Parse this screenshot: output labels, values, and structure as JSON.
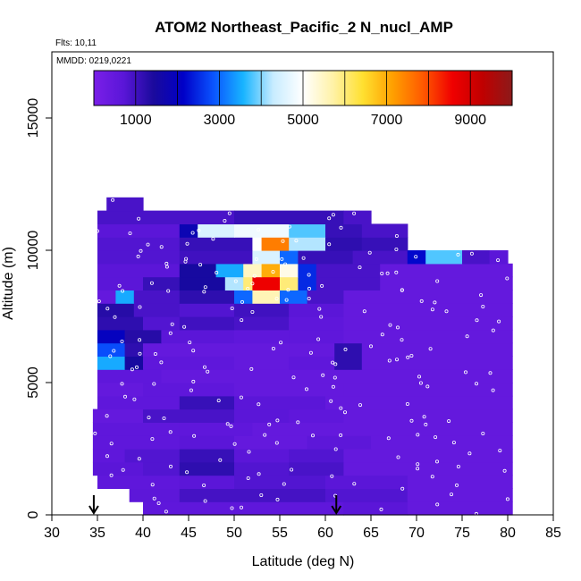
{
  "chart_data": {
    "type": "heatmap",
    "title": "ATOM2 Northeast_Pacific_2 N_nucl_AMP",
    "flights_label": "Flts: 10,11",
    "dates_label": "MMDD: 0219,0221",
    "xlabel": "Latitude (deg N)",
    "ylabel": "Altitude (m)",
    "xlim": [
      30,
      85
    ],
    "ylim": [
      0,
      17500
    ],
    "xticks": [
      30,
      35,
      40,
      45,
      50,
      55,
      60,
      65,
      70,
      75,
      80,
      85
    ],
    "yticks": [
      0,
      5000,
      10000,
      15000
    ],
    "colorbar": {
      "min": 0,
      "max": 10000,
      "ticks": [
        1000,
        3000,
        5000,
        7000,
        9000
      ],
      "stops": [
        "#7a1fe8",
        "#5a16d8",
        "#1a0a9c",
        "#0000c8",
        "#0a54ff",
        "#18b4ff",
        "#c8ecff",
        "#ffffff",
        "#fff2a8",
        "#ffe030",
        "#ffa000",
        "#ff5a00",
        "#f00000",
        "#c00000",
        "#8c1a1a"
      ]
    },
    "arrows_at_latitude": [
      34.6,
      61.2
    ],
    "levels": [
      {
        "y0": 0,
        "y1": 500,
        "cells": [
          [
            40,
            62,
            600
          ],
          [
            62,
            69,
            700
          ],
          [
            69,
            80.5,
            500
          ]
        ]
      },
      {
        "y0": 500,
        "y1": 1000,
        "cells": [
          [
            38.5,
            44,
            650
          ],
          [
            44,
            60,
            950
          ],
          [
            60,
            69,
            800
          ],
          [
            69,
            80.5,
            500
          ]
        ]
      },
      {
        "y0": 1000,
        "y1": 1500,
        "cells": [
          [
            35,
            44,
            600
          ],
          [
            44,
            50,
            700
          ],
          [
            50,
            60,
            800
          ],
          [
            60,
            69,
            700
          ],
          [
            69,
            80.5,
            500
          ]
        ]
      },
      {
        "y0": 1500,
        "y1": 2000,
        "cells": [
          [
            34.5,
            40,
            700
          ],
          [
            40,
            44,
            800
          ],
          [
            44,
            50,
            1200
          ],
          [
            50,
            56,
            800
          ],
          [
            56,
            62,
            900
          ],
          [
            62,
            80.5,
            500
          ]
        ]
      },
      {
        "y0": 2000,
        "y1": 2500,
        "cells": [
          [
            34.5,
            38,
            600
          ],
          [
            38,
            44,
            800
          ],
          [
            44,
            50,
            1100
          ],
          [
            50,
            56,
            700
          ],
          [
            56,
            62,
            800
          ],
          [
            62,
            80.5,
            500
          ]
        ]
      },
      {
        "y0": 2500,
        "y1": 3000,
        "cells": [
          [
            34.5,
            44,
            600
          ],
          [
            44,
            50,
            700
          ],
          [
            50,
            58,
            500
          ],
          [
            58,
            65,
            650
          ],
          [
            65,
            80.5,
            500
          ]
        ]
      },
      {
        "y0": 3000,
        "y1": 3500,
        "cells": [
          [
            34.5,
            44,
            600
          ],
          [
            44,
            52,
            600
          ],
          [
            52,
            60,
            500
          ],
          [
            60,
            80.5,
            500
          ]
        ]
      },
      {
        "y0": 3500,
        "y1": 4000,
        "cells": [
          [
            34.5,
            40,
            500
          ],
          [
            40,
            50,
            900
          ],
          [
            50,
            56,
            700
          ],
          [
            56,
            62,
            600
          ],
          [
            62,
            80.5,
            500
          ]
        ]
      },
      {
        "y0": 4000,
        "y1": 4500,
        "cells": [
          [
            35,
            44,
            600
          ],
          [
            44,
            50,
            1100
          ],
          [
            50,
            60,
            700
          ],
          [
            60,
            80.5,
            500
          ]
        ]
      },
      {
        "y0": 4500,
        "y1": 5000,
        "cells": [
          [
            35,
            40,
            500
          ],
          [
            40,
            50,
            600
          ],
          [
            50,
            62,
            500
          ],
          [
            62,
            80.5,
            500
          ]
        ]
      },
      {
        "y0": 5000,
        "y1": 5500,
        "cells": [
          [
            35,
            42,
            600
          ],
          [
            42,
            50,
            500
          ],
          [
            50,
            60,
            500
          ],
          [
            60,
            80.5,
            500
          ]
        ]
      },
      {
        "y0": 5500,
        "y1": 6000,
        "cells": [
          [
            35,
            38,
            3500
          ],
          [
            38,
            40,
            1500
          ],
          [
            40,
            50,
            600
          ],
          [
            50,
            56,
            500
          ],
          [
            56,
            61,
            600
          ],
          [
            61,
            64,
            1200
          ],
          [
            64,
            80.5,
            500
          ]
        ]
      },
      {
        "y0": 6000,
        "y1": 6500,
        "cells": [
          [
            35,
            38,
            2800
          ],
          [
            38,
            40,
            1200
          ],
          [
            40,
            56,
            500
          ],
          [
            56,
            61,
            500
          ],
          [
            61,
            64,
            1200
          ],
          [
            64,
            80.5,
            500
          ]
        ]
      },
      {
        "y0": 6500,
        "y1": 7000,
        "cells": [
          [
            35,
            38,
            2000
          ],
          [
            38,
            42,
            1300
          ],
          [
            42,
            50,
            700
          ],
          [
            50,
            56,
            600
          ],
          [
            56,
            62,
            600
          ],
          [
            62,
            80.5,
            500
          ]
        ]
      },
      {
        "y0": 7000,
        "y1": 7500,
        "cells": [
          [
            35,
            40,
            1200
          ],
          [
            40,
            44,
            800
          ],
          [
            44,
            50,
            1000
          ],
          [
            50,
            56,
            900
          ],
          [
            56,
            62,
            600
          ],
          [
            62,
            80.5,
            500
          ]
        ]
      },
      {
        "y0": 7500,
        "y1": 8000,
        "cells": [
          [
            35,
            39,
            1300
          ],
          [
            39,
            44,
            900
          ],
          [
            44,
            50,
            800
          ],
          [
            50,
            56,
            1000
          ],
          [
            56,
            62,
            700
          ],
          [
            62,
            80.5,
            500
          ]
        ]
      },
      {
        "y0": 8000,
        "y1": 8500,
        "cells": [
          [
            35,
            37,
            500
          ],
          [
            37,
            39,
            3500
          ],
          [
            39,
            44,
            900
          ],
          [
            44,
            50,
            1200
          ],
          [
            50,
            52,
            3000
          ],
          [
            52,
            55,
            5600
          ],
          [
            55,
            58,
            3000
          ],
          [
            58,
            62,
            900
          ],
          [
            62,
            80.5,
            500
          ]
        ]
      },
      {
        "y0": 8500,
        "y1": 9000,
        "cells": [
          [
            35,
            40,
            700
          ],
          [
            40,
            44,
            1100
          ],
          [
            44,
            49,
            1500
          ],
          [
            49,
            51,
            4200
          ],
          [
            51,
            52,
            6000
          ],
          [
            52,
            55,
            8600
          ],
          [
            55,
            57,
            6000
          ],
          [
            57,
            59,
            2500
          ],
          [
            59,
            66,
            900
          ],
          [
            66,
            80.5,
            500
          ]
        ]
      },
      {
        "y0": 9000,
        "y1": 9500,
        "cells": [
          [
            35,
            44,
            700
          ],
          [
            44,
            48,
            1500
          ],
          [
            48,
            51,
            3500
          ],
          [
            51,
            53,
            5500
          ],
          [
            53,
            55,
            7000
          ],
          [
            55,
            57,
            5200
          ],
          [
            57,
            59,
            2500
          ],
          [
            59,
            66,
            900
          ],
          [
            66,
            80.5,
            500
          ]
        ]
      },
      {
        "y0": 9500,
        "y1": 10000,
        "cells": [
          [
            35,
            44,
            800
          ],
          [
            44,
            52,
            1000
          ],
          [
            52,
            55,
            4500
          ],
          [
            55,
            57,
            3000
          ],
          [
            57,
            63,
            1100
          ],
          [
            63,
            69,
            900
          ],
          [
            69,
            71,
            2200
          ],
          [
            71,
            75,
            3800
          ],
          [
            75,
            78,
            900
          ],
          [
            78,
            80,
            700
          ]
        ]
      },
      {
        "y0": 10000,
        "y1": 10500,
        "cells": [
          [
            35,
            44,
            800
          ],
          [
            44,
            52,
            1100
          ],
          [
            52,
            53,
            5000
          ],
          [
            53,
            56,
            7500
          ],
          [
            56,
            60,
            4200
          ],
          [
            60,
            64,
            1200
          ],
          [
            64,
            69,
            1100
          ]
        ]
      },
      {
        "y0": 10500,
        "y1": 11000,
        "cells": [
          [
            35,
            44,
            700
          ],
          [
            44,
            46,
            1800
          ],
          [
            46,
            50,
            4500
          ],
          [
            50,
            56,
            4800
          ],
          [
            56,
            60,
            3800
          ],
          [
            60,
            64,
            1100
          ],
          [
            64,
            69,
            900
          ]
        ]
      },
      {
        "y0": 11000,
        "y1": 11500,
        "cells": [
          [
            35,
            50,
            900
          ],
          [
            50,
            62,
            1100
          ],
          [
            62,
            65,
            900
          ]
        ]
      },
      {
        "y0": 11500,
        "y1": 12000,
        "cells": [
          [
            36,
            40,
            900
          ]
        ]
      }
    ]
  }
}
